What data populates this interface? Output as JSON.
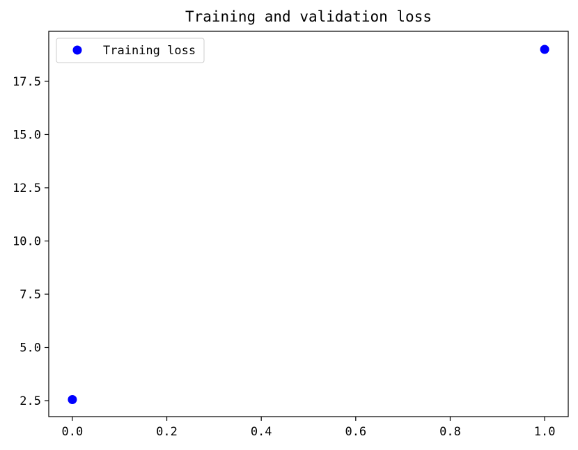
{
  "chart_data": {
    "type": "scatter",
    "title": "Training and validation loss",
    "xlabel": "",
    "ylabel": "",
    "xlim": [
      -0.05,
      1.05
    ],
    "ylim": [
      1.75,
      19.85
    ],
    "x_ticks": [
      0.0,
      0.2,
      0.4,
      0.6,
      0.8,
      1.0
    ],
    "x_tick_labels": [
      "0.0",
      "0.2",
      "0.4",
      "0.6",
      "0.8",
      "1.0"
    ],
    "y_ticks": [
      2.5,
      5.0,
      7.5,
      10.0,
      12.5,
      15.0,
      17.5
    ],
    "y_tick_labels": [
      "2.5",
      "5.0",
      "7.5",
      "10.0",
      "12.5",
      "15.0",
      "17.5"
    ],
    "grid": false,
    "legend_position": "top-left",
    "series": [
      {
        "name": "Training loss",
        "color": "#0000ff",
        "marker": "circle",
        "x": [
          0,
          1
        ],
        "y": [
          2.55,
          19.0
        ]
      }
    ]
  }
}
